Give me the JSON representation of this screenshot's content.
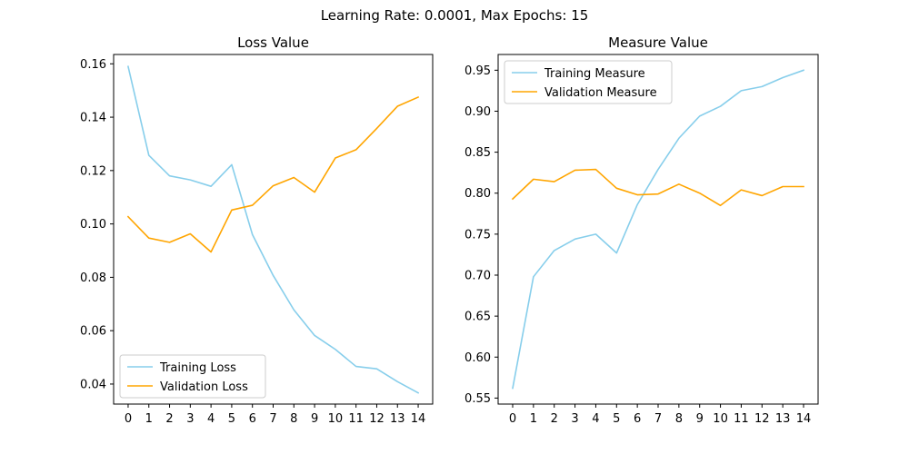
{
  "suptitle": "Learning Rate: 0.0001, Max Epochs: 15",
  "chart_data": [
    {
      "type": "line",
      "title": "Loss Value",
      "xlabel": "",
      "ylabel": "",
      "x": [
        0,
        1,
        2,
        3,
        4,
        5,
        6,
        7,
        8,
        9,
        10,
        11,
        12,
        13,
        14
      ],
      "xticks": [
        "0",
        "1",
        "2",
        "3",
        "4",
        "5",
        "6",
        "7",
        "8",
        "9",
        "10",
        "11",
        "12",
        "13",
        "14"
      ],
      "xlim": [
        -0.7,
        14.7
      ],
      "ylim": [
        0.0325,
        0.1635
      ],
      "yticks": [
        "0.04",
        "0.06",
        "0.08",
        "0.10",
        "0.12",
        "0.14",
        "0.16"
      ],
      "grid": false,
      "legend": "lower left",
      "series": [
        {
          "name": "Training Loss",
          "color": "#87ceeb",
          "values": [
            0.159,
            0.1257,
            0.118,
            0.1165,
            0.1141,
            0.1222,
            0.096,
            0.0807,
            0.0678,
            0.0582,
            0.053,
            0.0466,
            0.0457,
            0.0409,
            0.0367
          ]
        },
        {
          "name": "Validation Loss",
          "color": "#ffa500",
          "values": [
            0.1027,
            0.0947,
            0.0931,
            0.0963,
            0.0895,
            0.1052,
            0.107,
            0.1143,
            0.1174,
            0.1119,
            0.1247,
            0.1278,
            0.1358,
            0.1441,
            0.1475
          ]
        }
      ]
    },
    {
      "type": "line",
      "title": "Measure Value",
      "xlabel": "",
      "ylabel": "",
      "x": [
        0,
        1,
        2,
        3,
        4,
        5,
        6,
        7,
        8,
        9,
        10,
        11,
        12,
        13,
        14
      ],
      "xticks": [
        "0",
        "1",
        "2",
        "3",
        "4",
        "5",
        "6",
        "7",
        "8",
        "9",
        "10",
        "11",
        "12",
        "13",
        "14"
      ],
      "xlim": [
        -0.7,
        14.7
      ],
      "ylim": [
        0.5427,
        0.9692
      ],
      "yticks": [
        "0.55",
        "0.60",
        "0.65",
        "0.70",
        "0.75",
        "0.80",
        "0.85",
        "0.90",
        "0.95"
      ],
      "grid": false,
      "legend": "upper left",
      "series": [
        {
          "name": "Training Measure",
          "color": "#87ceeb",
          "values": [
            0.562,
            0.698,
            0.73,
            0.744,
            0.75,
            0.727,
            0.786,
            0.829,
            0.867,
            0.894,
            0.906,
            0.925,
            0.93,
            0.941,
            0.95
          ]
        },
        {
          "name": "Validation Measure",
          "color": "#ffa500",
          "values": [
            0.793,
            0.817,
            0.814,
            0.828,
            0.829,
            0.806,
            0.798,
            0.799,
            0.811,
            0.8,
            0.785,
            0.804,
            0.797,
            0.808,
            0.808
          ]
        }
      ]
    }
  ]
}
